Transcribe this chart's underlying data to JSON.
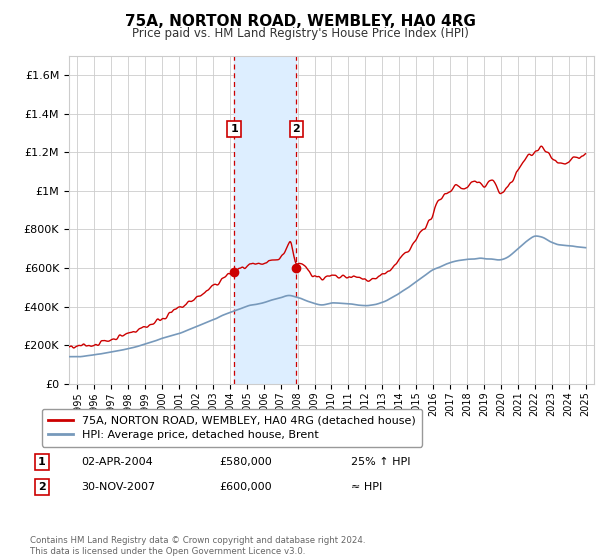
{
  "title": "75A, NORTON ROAD, WEMBLEY, HA0 4RG",
  "subtitle": "Price paid vs. HM Land Registry's House Price Index (HPI)",
  "legend_line1": "75A, NORTON ROAD, WEMBLEY, HA0 4RG (detached house)",
  "legend_line2": "HPI: Average price, detached house, Brent",
  "footer": "Contains HM Land Registry data © Crown copyright and database right 2024.\nThis data is licensed under the Open Government Licence v3.0.",
  "red_color": "#cc0000",
  "blue_color": "#7799bb",
  "shade_color": "#ddeeff",
  "grid_color": "#cccccc",
  "background_color": "#ffffff",
  "ylim": [
    0,
    1700000
  ],
  "xlim_start": 1994.5,
  "xlim_end": 2025.5,
  "transaction1_x": 2004.25,
  "transaction2_x": 2007.92,
  "transaction1_y": 580000,
  "transaction2_y": 600000,
  "transaction1_date": "02-APR-2004",
  "transaction1_price": "£580,000",
  "transaction1_hpi": "25% ↑ HPI",
  "transaction2_date": "30-NOV-2007",
  "transaction2_price": "£600,000",
  "transaction2_hpi": "≈ HPI"
}
